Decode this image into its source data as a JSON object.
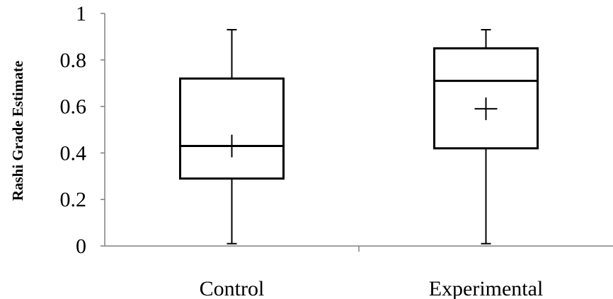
{
  "chart_data": {
    "type": "box",
    "title": "",
    "xlabel": "",
    "ylabel": "Rashi Grade Estimate",
    "ylim": [
      0,
      1
    ],
    "yticks": [
      "0",
      "0.2",
      "0.4",
      "0.6",
      "0.8",
      "1"
    ],
    "categories": [
      "Control",
      "Experimental"
    ],
    "boxes": [
      {
        "category": "Control",
        "min": 0.01,
        "q1": 0.29,
        "median": 0.43,
        "q3": 0.72,
        "max": 0.93,
        "mean": 0.43
      },
      {
        "category": "Experimental",
        "min": 0.01,
        "q1": 0.42,
        "median": 0.71,
        "q3": 0.85,
        "max": 0.93,
        "mean": 0.59
      }
    ],
    "grid": false,
    "legend": "none"
  }
}
